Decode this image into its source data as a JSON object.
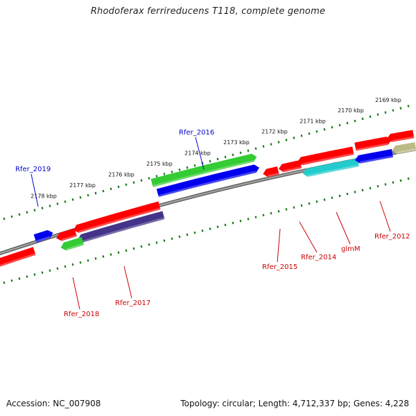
{
  "title": "Rhodoferax ferrireducens T118, complete genome",
  "footer": {
    "accession": "Accession: NC_007908",
    "topology": "Topology: circular; Length: 4,712,337 bp; Genes: 4,228"
  },
  "colors": {
    "backbone": "#808080",
    "ruler": "#1a7a1a",
    "gene_red": "#ff0000",
    "gene_blue": "#0000ee",
    "gene_green": "#33cc33",
    "gene_cyan": "#22cccc",
    "gene_purple": "#443388",
    "gene_khaki": "#bbbb88",
    "label_red": "#cc0000",
    "label_blue": "#0000cc"
  },
  "ruler_ticks": [
    "2169 kbp",
    "2170 kbp",
    "2171 kbp",
    "2172 kbp",
    "2173 kbp",
    "2174 kbp",
    "2175 kbp",
    "2176 kbp",
    "2177 kbp",
    "2178 kbp"
  ],
  "gene_labels": [
    "Rfer_2019",
    "Rfer_2016",
    "Rfer_2018",
    "Rfer_2017",
    "Rfer_2015",
    "Rfer_2014",
    "glmM",
    "Rfer_2012"
  ]
}
